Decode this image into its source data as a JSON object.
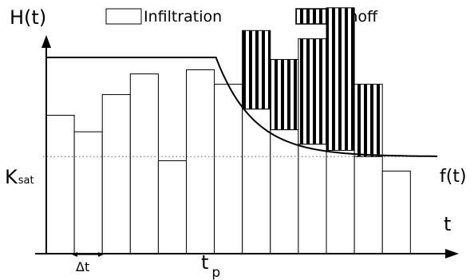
{
  "labels": {
    "y_axis": "H(t)",
    "x_axis": "t",
    "ksat_main": "K",
    "ksat_sub": "sat",
    "tp_main": "t",
    "tp_sub": "p",
    "delta_t": "Δt",
    "capacity_curve": "f(t)"
  },
  "legend": {
    "infiltration": "Infiltration",
    "runoff": "Runoff"
  },
  "chart_data": {
    "type": "bar",
    "xlabel": "t",
    "ylabel": "H(t)",
    "bars": [
      {
        "rain": 0.67,
        "infiltration": 0.67,
        "runoff": 0.0
      },
      {
        "rain": 0.59,
        "infiltration": 0.59,
        "runoff": 0.0
      },
      {
        "rain": 0.77,
        "infiltration": 0.77,
        "runoff": 0.0
      },
      {
        "rain": 0.87,
        "infiltration": 0.87,
        "runoff": 0.0
      },
      {
        "rain": 0.45,
        "infiltration": 0.45,
        "runoff": 0.0
      },
      {
        "rain": 0.89,
        "infiltration": 0.89,
        "runoff": 0.0
      },
      {
        "rain": 0.82,
        "infiltration": 0.82,
        "runoff": 0.0
      },
      {
        "rain": 1.08,
        "infiltration": 0.7,
        "runoff": 0.38
      },
      {
        "rain": 0.94,
        "infiltration": 0.6,
        "runoff": 0.34
      },
      {
        "rain": 1.04,
        "infiltration": 0.53,
        "runoff": 0.51
      },
      {
        "rain": 1.19,
        "infiltration": 0.5,
        "runoff": 0.69
      },
      {
        "rain": 0.82,
        "infiltration": 0.47,
        "runoff": 0.35
      },
      {
        "rain": 0.4,
        "infiltration": 0.4,
        "runoff": 0.0
      }
    ],
    "initial_capacity": 0.95,
    "ksat": 0.47,
    "ponding_index": 6
  }
}
